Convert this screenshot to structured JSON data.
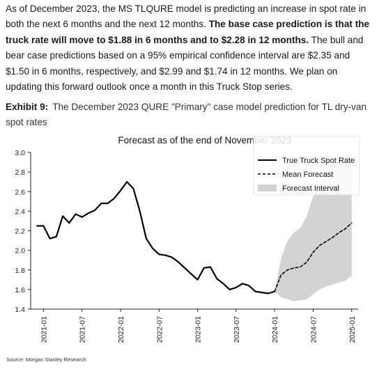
{
  "paragraph": {
    "p1": "As of December 2023, the MS TLQURE model is predicting an increase in spot rate in both the next 6 months and the next 12 months. ",
    "bold": "The base case prediction is that the truck rate will move to $1.88 in 6 months and to $2.28 in 12 months.",
    "p2": " The bull and bear case predictions based on a 95% empirical confidence interval are $2.35 and $1.50 in 6 months, respectively, and $2.99 and $1.74 in 12 months. We plan on updating this forward outlook once a month in this Truck Stop series."
  },
  "exhibit": {
    "label": "Exhibit 9:",
    "caption": "The December 2023 QURE \"Primary\" case model prediction for TL dry-van spot rates"
  },
  "source": "Source: Morgan Stanley Research",
  "chart_data": {
    "type": "line",
    "title": "Forecast as of the end of November 2023",
    "xlabel": "",
    "ylabel": "",
    "x_axis_type": "date",
    "xlim": [
      "2020-11",
      "2025-02"
    ],
    "ylim": [
      1.4,
      3.0
    ],
    "y_ticks": [
      1.4,
      1.6,
      1.8,
      2.0,
      2.2,
      2.4,
      2.6,
      2.8,
      3.0
    ],
    "y_tick_labels": [
      "1.4",
      "1.6",
      "1.8",
      "2.0",
      "2.2",
      "2.4",
      "2.6",
      "2.8",
      "3.0"
    ],
    "x_ticks": [
      "2021-01",
      "2021-07",
      "2022-01",
      "2022-07",
      "2023-01",
      "2023-07",
      "2024-01",
      "2024-07",
      "2025-01"
    ],
    "grid": false,
    "legend_position": "top-right",
    "series": [
      {
        "name": "True Truck Spot Rate",
        "style": "solid",
        "color": "#000000",
        "points": [
          [
            "2020-12",
            2.25
          ],
          [
            "2021-01",
            2.25
          ],
          [
            "2021-02",
            2.12
          ],
          [
            "2021-03",
            2.14
          ],
          [
            "2021-04",
            2.35
          ],
          [
            "2021-05",
            2.28
          ],
          [
            "2021-06",
            2.37
          ],
          [
            "2021-07",
            2.34
          ],
          [
            "2021-08",
            2.38
          ],
          [
            "2021-09",
            2.41
          ],
          [
            "2021-10",
            2.48
          ],
          [
            "2021-11",
            2.48
          ],
          [
            "2021-12",
            2.53
          ],
          [
            "2022-01",
            2.61
          ],
          [
            "2022-02",
            2.7
          ],
          [
            "2022-03",
            2.63
          ],
          [
            "2022-04",
            2.4
          ],
          [
            "2022-05",
            2.12
          ],
          [
            "2022-06",
            2.02
          ],
          [
            "2022-07",
            1.96
          ],
          [
            "2022-08",
            1.95
          ],
          [
            "2022-09",
            1.93
          ],
          [
            "2022-10",
            1.88
          ],
          [
            "2022-11",
            1.82
          ],
          [
            "2022-12",
            1.76
          ],
          [
            "2023-01",
            1.7
          ],
          [
            "2023-02",
            1.82
          ],
          [
            "2023-03",
            1.83
          ],
          [
            "2023-04",
            1.71
          ],
          [
            "2023-05",
            1.66
          ],
          [
            "2023-06",
            1.6
          ],
          [
            "2023-07",
            1.62
          ],
          [
            "2023-08",
            1.66
          ],
          [
            "2023-09",
            1.64
          ],
          [
            "2023-10",
            1.58
          ],
          [
            "2023-11",
            1.57
          ],
          [
            "2023-12",
            1.56
          ],
          [
            "2024-01",
            1.58
          ]
        ]
      },
      {
        "name": "Mean Forecast",
        "style": "dashed",
        "color": "#000000",
        "points": [
          [
            "2024-01",
            1.58
          ],
          [
            "2024-02",
            1.75
          ],
          [
            "2024-03",
            1.8
          ],
          [
            "2024-04",
            1.82
          ],
          [
            "2024-05",
            1.83
          ],
          [
            "2024-06",
            1.88
          ],
          [
            "2024-07",
            1.98
          ],
          [
            "2024-08",
            2.05
          ],
          [
            "2024-09",
            2.09
          ],
          [
            "2024-10",
            2.13
          ],
          [
            "2024-11",
            2.18
          ],
          [
            "2024-12",
            2.22
          ],
          [
            "2025-01",
            2.28
          ]
        ]
      }
    ],
    "band": {
      "name": "Forecast Interval",
      "color": "#d3d3d3",
      "upper": [
        [
          "2024-01",
          1.58
        ],
        [
          "2024-02",
          1.92
        ],
        [
          "2024-03",
          2.1
        ],
        [
          "2024-04",
          2.18
        ],
        [
          "2024-05",
          2.23
        ],
        [
          "2024-06",
          2.35
        ],
        [
          "2024-07",
          2.55
        ],
        [
          "2024-08",
          2.7
        ],
        [
          "2024-09",
          2.82
        ],
        [
          "2024-10",
          2.9
        ],
        [
          "2024-11",
          2.95
        ],
        [
          "2024-12",
          2.97
        ],
        [
          "2025-01",
          2.99
        ]
      ],
      "lower": [
        [
          "2024-01",
          1.58
        ],
        [
          "2024-02",
          1.52
        ],
        [
          "2024-03",
          1.5
        ],
        [
          "2024-04",
          1.48
        ],
        [
          "2024-05",
          1.49
        ],
        [
          "2024-06",
          1.5
        ],
        [
          "2024-07",
          1.55
        ],
        [
          "2024-08",
          1.6
        ],
        [
          "2024-09",
          1.63
        ],
        [
          "2024-10",
          1.65
        ],
        [
          "2024-11",
          1.67
        ],
        [
          "2024-12",
          1.69
        ],
        [
          "2025-01",
          1.74
        ]
      ]
    }
  }
}
